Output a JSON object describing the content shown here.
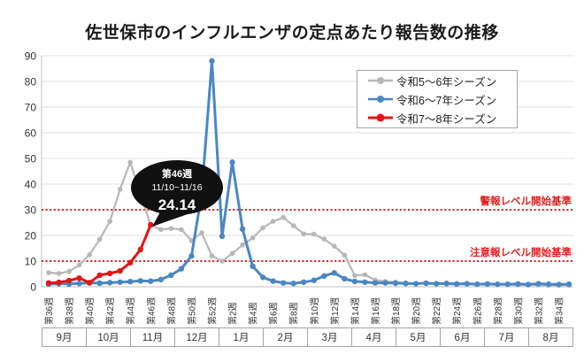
{
  "title": "佐世保市のインフルエンザの定点あたり報告数の推移",
  "chart_data": {
    "type": "line",
    "title": "佐世保市のインフルエンザの定点あたり報告数の推移",
    "ylim": [
      0,
      90
    ],
    "y_ticks": [
      0,
      10,
      20,
      30,
      40,
      50,
      60,
      70,
      80,
      90
    ],
    "grid": true,
    "legend_position": "top-right",
    "x_week_numbers": [
      36,
      37,
      38,
      39,
      40,
      41,
      42,
      43,
      44,
      45,
      46,
      47,
      48,
      49,
      50,
      51,
      52,
      1,
      2,
      3,
      4,
      5,
      6,
      7,
      8,
      9,
      10,
      11,
      12,
      13,
      14,
      15,
      16,
      17,
      18,
      19,
      20,
      21,
      22,
      23,
      24,
      25,
      26,
      27,
      28,
      29,
      30,
      31,
      32,
      33,
      34,
      35
    ],
    "x_tick_labels": [
      "第36週",
      "第38週",
      "第40週",
      "第42週",
      "第44週",
      "第46週",
      "第48週",
      "第50週",
      "第52週",
      "第2週",
      "第4週",
      "第6週",
      "第8週",
      "第10週",
      "第12週",
      "第14週",
      "第16週",
      "第18週",
      "第20週",
      "第22週",
      "第24週",
      "第26週",
      "第28週",
      "第30週",
      "第32週",
      "第34週"
    ],
    "month_labels": [
      "9月",
      "10月",
      "11月",
      "12月",
      "1月",
      "2月",
      "3月",
      "4月",
      "5月",
      "6月",
      "7月",
      "8月"
    ],
    "threshold_color": "#e02020",
    "thresholds": [
      {
        "value": 30,
        "label": "警報レベル開始基準"
      },
      {
        "value": 10,
        "label": "注意報レベル開始基準"
      }
    ],
    "series": [
      {
        "name": "令和5〜6年シーズン",
        "color": "#b7b7b7",
        "values": [
          5.5,
          5.2,
          6,
          8.5,
          12.5,
          18.5,
          25.5,
          38,
          48.5,
          36,
          24,
          22.3,
          22.7,
          22.3,
          18,
          21,
          12,
          10,
          13,
          16.3,
          19,
          23,
          25.5,
          27,
          23.8,
          20.6,
          20.5,
          18.6,
          15.8,
          12.3,
          4.4,
          4.7,
          2.6,
          2.1,
          1.8,
          1.5,
          1.3,
          1.2,
          1.1,
          1,
          1,
          0.9,
          0.9,
          0.8,
          0.8,
          0.8,
          0.7,
          0.7,
          0.7,
          0.6,
          0.6,
          0.6
        ]
      },
      {
        "name": "令和6〜7年シーズン",
        "color": "#4a87c2",
        "values": [
          1,
          1.2,
          1.1,
          1.3,
          1.5,
          1.4,
          1.6,
          1.8,
          2,
          2.3,
          2.2,
          2.8,
          4.5,
          7,
          12,
          36,
          88,
          19.7,
          48.5,
          22.5,
          8,
          3.7,
          2.2,
          1.5,
          1.3,
          1.8,
          2.5,
          4.2,
          5.4,
          3.1,
          2.1,
          1.8,
          1.5,
          1.5,
          1.4,
          1.3,
          1.2,
          1.4,
          1.2,
          1.3,
          1.1,
          1.2,
          1,
          1.1,
          1,
          1,
          1.1,
          0.9,
          1.2,
          1,
          0.9,
          1
        ]
      },
      {
        "name": "令和7〜8年シーズン",
        "color": "#e51414",
        "values": [
          1.5,
          1.7,
          2.4,
          3.4,
          1.6,
          4.5,
          5.2,
          6.2,
          9.4,
          14.5,
          24.14
        ]
      }
    ],
    "annotation": {
      "week_label": "第46週",
      "date_range": "11/10~11/16",
      "value_label": "24.14",
      "value": 24.14,
      "week_index": 10
    }
  }
}
